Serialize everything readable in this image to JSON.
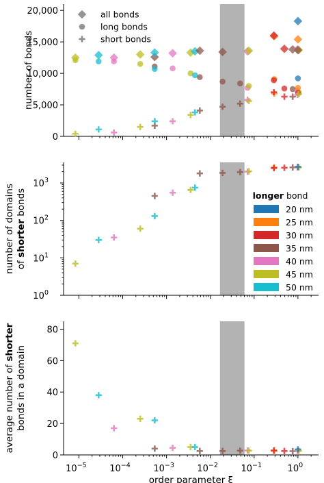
{
  "shared": {
    "x_scale": "log",
    "x_label": "order parameter ξ",
    "xlim_log10": [
      -5.35,
      0.47
    ],
    "x_ticks": [
      -5,
      -4,
      -3,
      -2,
      -1,
      0
    ],
    "x_tick_labels": [
      "10",
      "10",
      "10",
      "10",
      "10",
      "10"
    ],
    "x_tick_exps": [
      "−5",
      "−4",
      "−3",
      "−2",
      "−1",
      "0"
    ],
    "shaded_band_log10": [
      -1.78,
      -1.22
    ],
    "shaded_color": "#b3b3b3"
  },
  "colors": {
    "20 nm": "#1f77b4",
    "25 nm": "#ff7f0e",
    "30 nm": "#d62728",
    "35 nm": "#8c564b",
    "40 nm": "#e377c2",
    "45 nm": "#bcbd22",
    "50 nm": "#17becf"
  },
  "legend_markers": {
    "items": [
      "all bonds",
      "long bonds",
      "short bonds"
    ]
  },
  "legend_colors": {
    "title_bold": "longer",
    "title_rest": " bond",
    "items": [
      "20 nm",
      "25 nm",
      "30 nm",
      "35 nm",
      "40 nm",
      "45 nm",
      "50 nm"
    ]
  },
  "chart_data": [
    {
      "type": "scatter",
      "panel": "top",
      "ylabel": "number of bonds",
      "ylim": [
        0,
        21000
      ],
      "y_ticks": [
        0,
        5000,
        10000,
        15000,
        20000
      ],
      "y_tick_labels": [
        "0",
        "5,000",
        "10,000",
        "15,000",
        "20,000"
      ],
      "series": [
        {
          "name": "all bonds",
          "marker": "diamond",
          "points": [
            {
              "c": "45 nm",
              "x": -5.08,
              "y": 12500
            },
            {
              "c": "50 nm",
              "x": -4.55,
              "y": 12900
            },
            {
              "c": "40 nm",
              "x": -4.2,
              "y": 12500
            },
            {
              "c": "45 nm",
              "x": -3.6,
              "y": 13000
            },
            {
              "c": "35 nm",
              "x": -3.27,
              "y": 12600
            },
            {
              "c": "50 nm",
              "x": -3.27,
              "y": 13300
            },
            {
              "c": "40 nm",
              "x": -2.86,
              "y": 13200
            },
            {
              "c": "45 nm",
              "x": -2.45,
              "y": 13300
            },
            {
              "c": "50 nm",
              "x": -2.35,
              "y": 13500
            },
            {
              "c": "35 nm",
              "x": -2.24,
              "y": 13600
            },
            {
              "c": "35 nm",
              "x": -1.72,
              "y": 13400
            },
            {
              "c": "40 nm",
              "x": -1.15,
              "y": 13500
            },
            {
              "c": "45 nm",
              "x": -1.12,
              "y": 13600
            },
            {
              "c": "25 nm",
              "x": -0.54,
              "y": 15900
            },
            {
              "c": "30 nm",
              "x": -0.55,
              "y": 16000
            },
            {
              "c": "30 nm",
              "x": -0.31,
              "y": 13900
            },
            {
              "c": "35 nm",
              "x": -0.12,
              "y": 13800
            },
            {
              "c": "40 nm",
              "x": -0.01,
              "y": 13800
            },
            {
              "c": "45 nm",
              "x": 0.02,
              "y": 13700
            },
            {
              "c": "20 nm",
              "x": 0.0,
              "y": 18300
            },
            {
              "c": "25 nm",
              "x": 0.0,
              "y": 15400
            },
            {
              "c": "35 nm",
              "x": 0.0,
              "y": 13700
            }
          ]
        },
        {
          "name": "long bonds",
          "marker": "circle",
          "points": [
            {
              "c": "45 nm",
              "x": -5.08,
              "y": 12100
            },
            {
              "c": "50 nm",
              "x": -4.55,
              "y": 11900
            },
            {
              "c": "40 nm",
              "x": -4.2,
              "y": 11900
            },
            {
              "c": "45 nm",
              "x": -3.6,
              "y": 11500
            },
            {
              "c": "35 nm",
              "x": -3.27,
              "y": 11100
            },
            {
              "c": "50 nm",
              "x": -3.27,
              "y": 10700
            },
            {
              "c": "40 nm",
              "x": -2.86,
              "y": 10800
            },
            {
              "c": "45 nm",
              "x": -2.45,
              "y": 10000
            },
            {
              "c": "50 nm",
              "x": -2.35,
              "y": 9700
            },
            {
              "c": "35 nm",
              "x": -2.24,
              "y": 9400
            },
            {
              "c": "35 nm",
              "x": -1.72,
              "y": 8700
            },
            {
              "c": "35 nm",
              "x": -1.32,
              "y": 8400
            },
            {
              "c": "40 nm",
              "x": -1.15,
              "y": 7700
            },
            {
              "c": "45 nm",
              "x": -1.12,
              "y": 8000
            },
            {
              "c": "25 nm",
              "x": -0.54,
              "y": 9100
            },
            {
              "c": "30 nm",
              "x": -0.55,
              "y": 8900
            },
            {
              "c": "30 nm",
              "x": -0.31,
              "y": 7600
            },
            {
              "c": "35 nm",
              "x": -0.12,
              "y": 7500
            },
            {
              "c": "40 nm",
              "x": -0.01,
              "y": 7200
            },
            {
              "c": "45 nm",
              "x": 0.02,
              "y": 7000
            },
            {
              "c": "20 nm",
              "x": 0.0,
              "y": 9200
            },
            {
              "c": "25 nm",
              "x": 0.0,
              "y": 7700
            },
            {
              "c": "30 nm",
              "x": 0.0,
              "y": 6900
            }
          ]
        },
        {
          "name": "short bonds",
          "marker": "plus",
          "points": [
            {
              "c": "45 nm",
              "x": -5.08,
              "y": 400
            },
            {
              "c": "50 nm",
              "x": -4.55,
              "y": 1100
            },
            {
              "c": "40 nm",
              "x": -4.2,
              "y": 600
            },
            {
              "c": "45 nm",
              "x": -3.6,
              "y": 1500
            },
            {
              "c": "35 nm",
              "x": -3.27,
              "y": 1700
            },
            {
              "c": "50 nm",
              "x": -3.27,
              "y": 2400
            },
            {
              "c": "40 nm",
              "x": -2.86,
              "y": 2400
            },
            {
              "c": "45 nm",
              "x": -2.45,
              "y": 3400
            },
            {
              "c": "50 nm",
              "x": -2.35,
              "y": 3800
            },
            {
              "c": "35 nm",
              "x": -2.24,
              "y": 4100
            },
            {
              "c": "35 nm",
              "x": -1.72,
              "y": 4700
            },
            {
              "c": "35 nm",
              "x": -1.32,
              "y": 5200
            },
            {
              "c": "40 nm",
              "x": -1.15,
              "y": 5800
            },
            {
              "c": "45 nm",
              "x": -1.12,
              "y": 5600
            },
            {
              "c": "25 nm",
              "x": -0.54,
              "y": 6800
            },
            {
              "c": "30 nm",
              "x": -0.55,
              "y": 7000
            },
            {
              "c": "30 nm",
              "x": -0.31,
              "y": 6300
            },
            {
              "c": "35 nm",
              "x": -0.12,
              "y": 6300
            },
            {
              "c": "40 nm",
              "x": -0.01,
              "y": 6600
            },
            {
              "c": "45 nm",
              "x": 0.02,
              "y": 6700
            }
          ]
        }
      ]
    },
    {
      "type": "scatter",
      "panel": "middle",
      "ylabel_lines": [
        "number of domains",
        "of |shorter| bonds"
      ],
      "y_scale": "log",
      "ylim_log10": [
        0,
        3.55
      ],
      "y_ticks": [
        0,
        1,
        2,
        3
      ],
      "y_tick_labels": [
        "10",
        "10",
        "10",
        "10"
      ],
      "y_tick_exps": [
        "0",
        "1",
        "2",
        "3"
      ],
      "points": [
        {
          "c": "45 nm",
          "x": -5.08,
          "y": 7
        },
        {
          "c": "50 nm",
          "x": -4.55,
          "y": 30
        },
        {
          "c": "40 nm",
          "x": -4.2,
          "y": 35
        },
        {
          "c": "45 nm",
          "x": -3.6,
          "y": 60
        },
        {
          "c": "35 nm",
          "x": -3.27,
          "y": 450
        },
        {
          "c": "50 nm",
          "x": -3.27,
          "y": 130
        },
        {
          "c": "40 nm",
          "x": -2.86,
          "y": 550
        },
        {
          "c": "45 nm",
          "x": -2.45,
          "y": 650
        },
        {
          "c": "50 nm",
          "x": -2.35,
          "y": 750
        },
        {
          "c": "35 nm",
          "x": -2.24,
          "y": 1800
        },
        {
          "c": "35 nm",
          "x": -1.72,
          "y": 1850
        },
        {
          "c": "35 nm",
          "x": -1.32,
          "y": 1950
        },
        {
          "c": "40 nm",
          "x": -1.15,
          "y": 2000
        },
        {
          "c": "45 nm",
          "x": -1.12,
          "y": 2050
        },
        {
          "c": "25 nm",
          "x": -0.54,
          "y": 2600
        },
        {
          "c": "30 nm",
          "x": -0.55,
          "y": 2500
        },
        {
          "c": "30 nm",
          "x": -0.31,
          "y": 2550
        },
        {
          "c": "35 nm",
          "x": -0.12,
          "y": 2600
        },
        {
          "c": "40 nm",
          "x": -0.01,
          "y": 2600
        },
        {
          "c": "45 nm",
          "x": 0.02,
          "y": 2600
        },
        {
          "c": "20 nm",
          "x": 0.0,
          "y": 2700
        }
      ]
    },
    {
      "type": "scatter",
      "panel": "bottom",
      "ylabel_lines": [
        "average number of |shorter|",
        "bonds in a domain"
      ],
      "ylim": [
        0,
        85
      ],
      "y_ticks": [
        0,
        20,
        40,
        60,
        80
      ],
      "y_tick_labels": [
        "0",
        "20",
        "40",
        "60",
        "80"
      ],
      "points": [
        {
          "c": "45 nm",
          "x": -5.08,
          "y": 71
        },
        {
          "c": "50 nm",
          "x": -4.55,
          "y": 38
        },
        {
          "c": "40 nm",
          "x": -4.2,
          "y": 17
        },
        {
          "c": "45 nm",
          "x": -3.6,
          "y": 23
        },
        {
          "c": "35 nm",
          "x": -3.27,
          "y": 4
        },
        {
          "c": "50 nm",
          "x": -3.27,
          "y": 22
        },
        {
          "c": "40 nm",
          "x": -2.86,
          "y": 4.5
        },
        {
          "c": "45 nm",
          "x": -2.45,
          "y": 5
        },
        {
          "c": "50 nm",
          "x": -2.35,
          "y": 5
        },
        {
          "c": "35 nm",
          "x": -2.24,
          "y": 2.5
        },
        {
          "c": "35 nm",
          "x": -1.72,
          "y": 2.5
        },
        {
          "c": "35 nm",
          "x": -1.32,
          "y": 2.7
        },
        {
          "c": "40 nm",
          "x": -1.15,
          "y": 2.8
        },
        {
          "c": "45 nm",
          "x": -1.12,
          "y": 2.7
        },
        {
          "c": "25 nm",
          "x": -0.54,
          "y": 2.6
        },
        {
          "c": "30 nm",
          "x": -0.55,
          "y": 2.8
        },
        {
          "c": "30 nm",
          "x": -0.31,
          "y": 2.5
        },
        {
          "c": "35 nm",
          "x": -0.12,
          "y": 2.4
        },
        {
          "c": "40 nm",
          "x": -0.01,
          "y": 2.5
        },
        {
          "c": "45 nm",
          "x": 0.02,
          "y": 2.6
        },
        {
          "c": "20 nm",
          "x": 0.0,
          "y": 3.5
        }
      ]
    }
  ]
}
